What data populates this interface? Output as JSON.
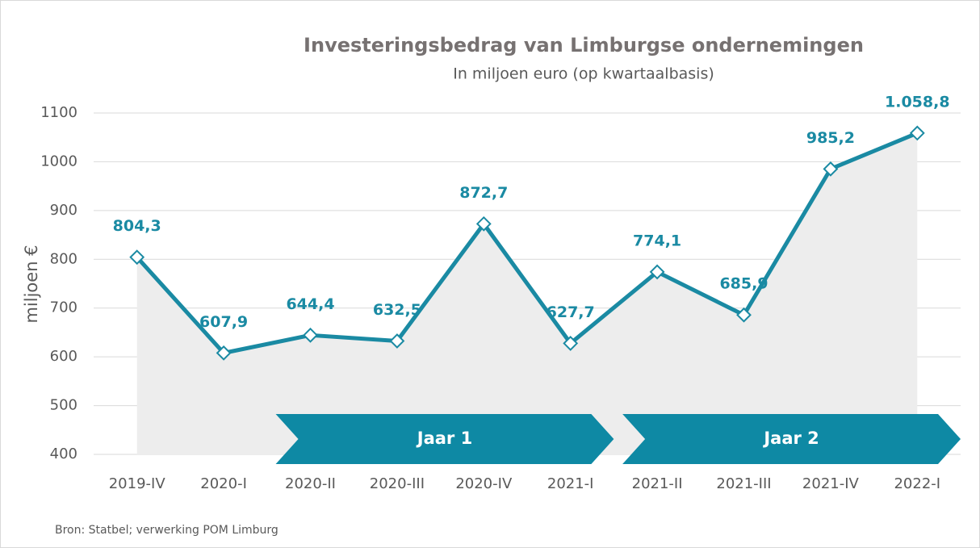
{
  "chart_data": {
    "type": "line",
    "title": "Investeringsbedrag van Limburgse ondernemingen",
    "subtitle": "In miljoen euro (op kwartaalbasis)",
    "y_label": "miljoen €",
    "source": "Bron: Statbel; verwerking POM Limburg",
    "categories": [
      "2019-IV",
      "2020-I",
      "2020-II",
      "2020-III",
      "2020-IV",
      "2021-I",
      "2021-II",
      "2021-III",
      "2021-IV",
      "2022-I"
    ],
    "values": [
      804.3,
      607.9,
      644.4,
      632.5,
      872.7,
      627.7,
      774.1,
      685.9,
      985.2,
      1058.8
    ],
    "value_labels": [
      "804,3",
      "607,9",
      "644,4",
      "632,5",
      "872,7",
      "627,7",
      "774,1",
      "685,9",
      "985,2",
      "1.058,8"
    ],
    "color": "#1a8aa3",
    "area_color": "#ededed",
    "grid": true,
    "ylim": [
      400,
      1100
    ],
    "yticks": [
      400,
      500,
      600,
      700,
      800,
      900,
      1000,
      1100
    ],
    "annotations": [
      {
        "text": "Jaar 1",
        "from": "2020-II",
        "to": "2021-I",
        "color": "#0e89a4"
      },
      {
        "text": "Jaar 2",
        "from": "2021-II",
        "to": "2022-I",
        "color": "#0e89a4"
      }
    ]
  }
}
